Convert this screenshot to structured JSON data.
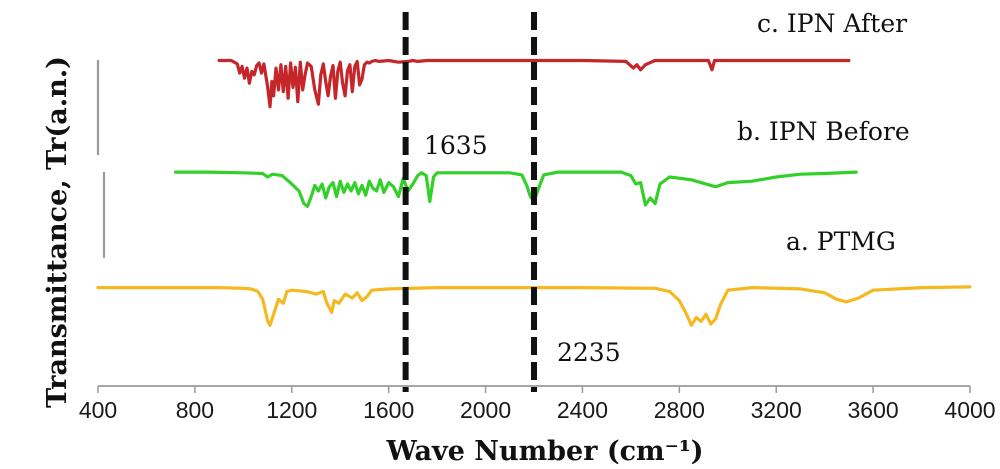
{
  "chart_data": {
    "type": "line",
    "title": "",
    "xlabel": "Wave Number (cm⁻¹)",
    "ylabel": "Transmittance, Tr(a.n.)",
    "xlim": [
      400,
      4000
    ],
    "xticks": [
      "400",
      "800",
      "1200",
      "1600",
      "2000",
      "2400",
      "2800",
      "3200",
      "3600",
      "4000"
    ],
    "grid": false,
    "series": [
      {
        "name": "c. IPN After",
        "color": "#c4262a",
        "x": [
          900,
          950,
          975,
          985,
          995,
          1005,
          1015,
          1025,
          1035,
          1045,
          1055,
          1065,
          1075,
          1085,
          1100,
          1110,
          1118,
          1125,
          1135,
          1145,
          1155,
          1165,
          1175,
          1185,
          1195,
          1205,
          1215,
          1225,
          1235,
          1245,
          1255,
          1265,
          1280,
          1295,
          1310,
          1320,
          1330,
          1340,
          1350,
          1360,
          1370,
          1380,
          1390,
          1400,
          1410,
          1420,
          1430,
          1440,
          1450,
          1460,
          1470,
          1480,
          1490,
          1500,
          1510,
          1520,
          1530,
          1545,
          1560,
          1600,
          1640,
          1680,
          1700,
          1720,
          1760,
          2000,
          2400,
          2580,
          2610,
          2625,
          2640,
          2660,
          2700,
          2800,
          2920,
          2935,
          2945,
          2960,
          3000,
          3200,
          3500
        ],
        "values": [
          97,
          97,
          93,
          82,
          90,
          76,
          88,
          70,
          84,
          80,
          91,
          94,
          82,
          93,
          66,
          42,
          72,
          55,
          88,
          62,
          92,
          60,
          90,
          52,
          94,
          65,
          89,
          48,
          95,
          62,
          80,
          94,
          90,
          62,
          45,
          80,
          93,
          72,
          55,
          78,
          91,
          52,
          84,
          95,
          70,
          55,
          85,
          92,
          60,
          90,
          96,
          68,
          75,
          92,
          95,
          94,
          96,
          97,
          96,
          97,
          95,
          96,
          97,
          96,
          97,
          97,
          97,
          96,
          88,
          92,
          86,
          92,
          97,
          97,
          97,
          86,
          97,
          97,
          97,
          97,
          97
        ]
      },
      {
        "name": "b. IPN Before",
        "color": "#33d02a",
        "x": [
          720,
          850,
          1000,
          1080,
          1100,
          1120,
          1160,
          1200,
          1230,
          1250,
          1265,
          1280,
          1295,
          1310,
          1325,
          1340,
          1355,
          1370,
          1385,
          1400,
          1415,
          1430,
          1445,
          1460,
          1475,
          1490,
          1505,
          1520,
          1535,
          1550,
          1565,
          1580,
          1600,
          1620,
          1640,
          1660,
          1680,
          1700,
          1720,
          1735,
          1755,
          1770,
          1785,
          1800,
          1900,
          2100,
          2150,
          2170,
          2185,
          2200,
          2215,
          2240,
          2300,
          2450,
          2560,
          2600,
          2620,
          2640,
          2660,
          2680,
          2700,
          2720,
          2760,
          2850,
          2950,
          3000,
          3100,
          3200,
          3300,
          3400,
          3530
        ],
        "values": [
          97,
          97,
          96,
          95,
          90,
          94,
          92,
          80,
          70,
          52,
          48,
          62,
          78,
          70,
          80,
          60,
          76,
          82,
          62,
          84,
          68,
          80,
          70,
          82,
          66,
          78,
          64,
          84,
          74,
          70,
          86,
          68,
          82,
          76,
          62,
          88,
          70,
          80,
          92,
          96,
          92,
          55,
          90,
          96,
          96,
          96,
          93,
          78,
          62,
          55,
          70,
          93,
          97,
          97,
          97,
          92,
          80,
          82,
          50,
          60,
          52,
          80,
          90,
          86,
          76,
          82,
          84,
          90,
          94,
          95,
          97
        ]
      },
      {
        "name": "a. PTMG",
        "color": "#f5b820",
        "x": [
          400,
          600,
          800,
          900,
          1000,
          1030,
          1060,
          1080,
          1100,
          1110,
          1125,
          1145,
          1165,
          1180,
          1200,
          1260,
          1300,
          1330,
          1345,
          1365,
          1375,
          1395,
          1420,
          1450,
          1470,
          1490,
          1510,
          1530,
          1600,
          1800,
          2400,
          2700,
          2760,
          2800,
          2830,
          2850,
          2870,
          2890,
          2910,
          2930,
          2950,
          2970,
          3000,
          3100,
          3300,
          3400,
          3450,
          3490,
          3540,
          3600,
          3800,
          4000
        ],
        "values": [
          96,
          96,
          96,
          96,
          95,
          94,
          90,
          78,
          45,
          38,
          55,
          78,
          72,
          90,
          92,
          90,
          86,
          90,
          72,
          58,
          76,
          72,
          86,
          80,
          88,
          76,
          82,
          92,
          94,
          96,
          96,
          95,
          90,
          76,
          55,
          38,
          50,
          44,
          55,
          40,
          48,
          70,
          92,
          96,
          94,
          88,
          78,
          74,
          80,
          92,
          96,
          97
        ]
      }
    ],
    "annotations": [
      {
        "x": 1670,
        "label": "1635"
      },
      {
        "x": 2200,
        "label": "2235"
      }
    ]
  }
}
